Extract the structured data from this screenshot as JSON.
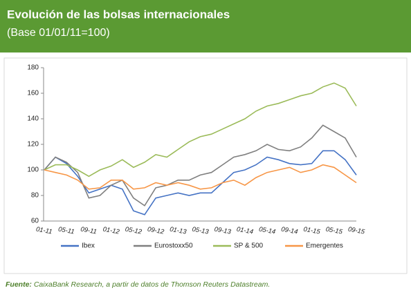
{
  "chart_data": {
    "type": "line",
    "title": "Evolución de las bolsas internacionales",
    "subtitle": "(Base 01/01/11=100)",
    "categories": [
      "01-11",
      null,
      "05-11",
      null,
      "09-11",
      null,
      "01-12",
      null,
      "05-12",
      null,
      "09-12",
      null,
      "01-13",
      null,
      "05-13",
      null,
      "09-13",
      null,
      "01-14",
      null,
      "05-14",
      null,
      "09-14",
      null,
      "01-15",
      null,
      "05-15",
      null,
      "09-15"
    ],
    "series": [
      {
        "name": "Ibex",
        "color": "#4472c4",
        "values": [
          100,
          110,
          105,
          95,
          82,
          85,
          88,
          85,
          68,
          65,
          78,
          80,
          82,
          80,
          82,
          82,
          90,
          98,
          100,
          104,
          110,
          108,
          105,
          104,
          105,
          115,
          115,
          108,
          96
        ]
      },
      {
        "name": "Eurostoxx50",
        "color": "#7f7f7f",
        "values": [
          100,
          110,
          106,
          98,
          78,
          80,
          88,
          92,
          78,
          72,
          86,
          88,
          92,
          92,
          96,
          98,
          104,
          110,
          112,
          115,
          120,
          116,
          115,
          118,
          125,
          135,
          130,
          125,
          110
        ]
      },
      {
        "name": "SP & 500",
        "color": "#9bbb59",
        "values": [
          100,
          104,
          104,
          100,
          95,
          100,
          103,
          108,
          102,
          106,
          112,
          110,
          116,
          122,
          126,
          128,
          132,
          136,
          140,
          146,
          150,
          152,
          155,
          158,
          160,
          165,
          168,
          164,
          150
        ]
      },
      {
        "name": "Emergentes",
        "color": "#f79646",
        "values": [
          100,
          98,
          96,
          92,
          85,
          86,
          92,
          92,
          85,
          86,
          90,
          88,
          90,
          88,
          85,
          86,
          90,
          92,
          88,
          94,
          98,
          100,
          102,
          98,
          100,
          104,
          102,
          96,
          90
        ]
      }
    ],
    "ylim": [
      60,
      180
    ],
    "yticks": [
      60,
      80,
      100,
      120,
      140,
      160,
      180
    ],
    "source": {
      "label": "Fuente:",
      "text": "CaixaBank Research, a partir de datos de Thomson Reuters Datastream."
    }
  }
}
